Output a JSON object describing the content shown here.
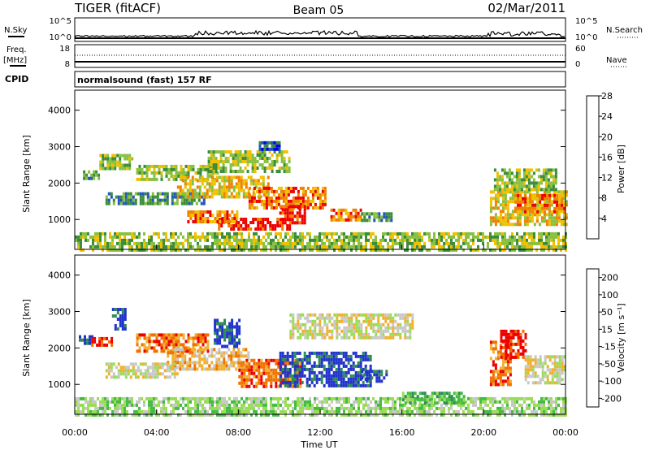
{
  "header": {
    "station": "TIGER (fitACF)",
    "beam": "Beam 05",
    "date": "02/Mar/2011"
  },
  "nsky_panel": {
    "left_label": "N.Sky",
    "right_label": "N.Search",
    "left_ticks": [
      "10^5",
      "10^0"
    ],
    "right_ticks": [
      "10^5",
      "10^0"
    ]
  },
  "freq_panel": {
    "left_label_line1": "Freq.",
    "left_label_line2": "[MHz]",
    "right_label": "Nave",
    "left_ticks": [
      "18",
      "8"
    ],
    "right_ticks": [
      "60",
      "0"
    ]
  },
  "cpid_panel": {
    "label": "CPID",
    "text": "normalsound (fast) 157 RF"
  },
  "x_axis": {
    "label": "Time UT",
    "ticks": [
      "00:00",
      "04:00",
      "08:00",
      "12:00",
      "16:00",
      "20:00",
      "00:00"
    ]
  },
  "chart_data": [
    {
      "type": "heatmap",
      "name": "power-panel",
      "ylabel": "Slant Range [km]",
      "yticks": [
        "1000",
        "2000",
        "3000",
        "4000"
      ],
      "ylim": [
        180,
        4550
      ],
      "xlim": [
        0,
        24
      ],
      "colorbar_label": "Power [dB]",
      "colorbar_ticks": [
        "4",
        "8",
        "12",
        "16",
        "20",
        "24",
        "28"
      ],
      "colorbar_colors": [
        "#0000ee",
        "#2255bb",
        "#3a8c3a",
        "#88c040",
        "#f0c000",
        "#f08000",
        "#ee0000"
      ],
      "regions": [
        {
          "t0": 0.4,
          "t1": 1.2,
          "r0": 2100,
          "r1": 2350,
          "level": 2
        },
        {
          "t0": 1.2,
          "t1": 2.8,
          "r0": 2400,
          "r1": 2800,
          "level": 3
        },
        {
          "t0": 3.0,
          "t1": 7.0,
          "r0": 2100,
          "r1": 2500,
          "level": 3
        },
        {
          "t0": 6.5,
          "t1": 10.5,
          "r0": 2300,
          "r1": 2900,
          "level": 3
        },
        {
          "t0": 1.5,
          "t1": 6.5,
          "r0": 1400,
          "r1": 1750,
          "level": 2
        },
        {
          "t0": 5.0,
          "t1": 9.5,
          "r0": 1650,
          "r1": 2200,
          "level": 4
        },
        {
          "t0": 8.5,
          "t1": 12.2,
          "r0": 1300,
          "r1": 1900,
          "level": 5
        },
        {
          "t0": 7.0,
          "t1": 10.5,
          "r0": 700,
          "r1": 1050,
          "level": 6
        },
        {
          "t0": 5.5,
          "t1": 8.0,
          "r0": 900,
          "r1": 1250,
          "level": 5
        },
        {
          "t0": 10.0,
          "t1": 11.2,
          "r0": 900,
          "r1": 1400,
          "level": 6
        },
        {
          "t0": 12.5,
          "t1": 14.0,
          "r0": 950,
          "r1": 1300,
          "level": 5
        },
        {
          "t0": 14.0,
          "t1": 15.5,
          "r0": 1000,
          "r1": 1200,
          "level": 2
        },
        {
          "t0": 9.0,
          "t1": 10.0,
          "r0": 2950,
          "r1": 3150,
          "level": 1
        },
        {
          "t0": 20.3,
          "t1": 24.0,
          "r0": 900,
          "r1": 1800,
          "level": 4
        },
        {
          "t0": 21.5,
          "t1": 24.0,
          "r0": 1250,
          "r1": 1700,
          "level": 5
        },
        {
          "t0": 20.5,
          "t1": 23.5,
          "r0": 1800,
          "r1": 2400,
          "level": 3
        },
        {
          "t0": 0.0,
          "t1": 24.0,
          "r0": 200,
          "r1": 650,
          "level": 3
        }
      ]
    },
    {
      "type": "heatmap",
      "name": "velocity-panel",
      "ylabel": "Slant Range [km]",
      "yticks": [
        "1000",
        "2000",
        "3000",
        "4000"
      ],
      "ylim": [
        180,
        4550
      ],
      "xlim": [
        0,
        24
      ],
      "colorbar_label": "Velocity [m s⁻¹]",
      "colorbar_ticks": [
        "200",
        "100",
        "50",
        "15",
        "-15",
        "-50",
        "-100",
        "-200"
      ],
      "colorbar_colors": [
        "#2233cc",
        "#2e8b57",
        "#44bb44",
        "#99dd55",
        "#c8c8c8",
        "#f0b030",
        "#f07000",
        "#ee0000"
      ],
      "regions": [
        {
          "t0": 0.2,
          "t1": 0.8,
          "r0": 2100,
          "r1": 2350,
          "level": 0
        },
        {
          "t0": 0.8,
          "t1": 1.8,
          "r0": 2100,
          "r1": 2300,
          "level": 7
        },
        {
          "t0": 1.7,
          "t1": 2.5,
          "r0": 2500,
          "r1": 3100,
          "level": 0
        },
        {
          "t0": 3.0,
          "t1": 6.5,
          "r0": 1900,
          "r1": 2400,
          "level": 6
        },
        {
          "t0": 4.5,
          "t1": 8.5,
          "r0": 1400,
          "r1": 2000,
          "level": 5
        },
        {
          "t0": 1.5,
          "t1": 5.0,
          "r0": 1200,
          "r1": 1600,
          "level": 4
        },
        {
          "t0": 6.8,
          "t1": 8.0,
          "r0": 2000,
          "r1": 2800,
          "level": 0
        },
        {
          "t0": 8.0,
          "t1": 11.0,
          "r0": 900,
          "r1": 1700,
          "level": 6
        },
        {
          "t0": 10.0,
          "t1": 14.5,
          "r0": 1000,
          "r1": 1900,
          "level": 0
        },
        {
          "t0": 14.0,
          "t1": 15.3,
          "r0": 1050,
          "r1": 1400,
          "level": 0
        },
        {
          "t0": 10.5,
          "t1": 16.5,
          "r0": 2300,
          "r1": 2950,
          "level": 4
        },
        {
          "t0": 20.3,
          "t1": 21.3,
          "r0": 1000,
          "r1": 2200,
          "level": 6
        },
        {
          "t0": 20.8,
          "t1": 22.0,
          "r0": 1700,
          "r1": 2500,
          "level": 7
        },
        {
          "t0": 22.0,
          "t1": 24.0,
          "r0": 1000,
          "r1": 1800,
          "level": 4
        },
        {
          "t0": 0.0,
          "t1": 24.0,
          "r0": 200,
          "r1": 650,
          "level": 3
        },
        {
          "t0": 16.0,
          "t1": 19.0,
          "r0": 500,
          "r1": 800,
          "level": 2
        }
      ]
    }
  ]
}
